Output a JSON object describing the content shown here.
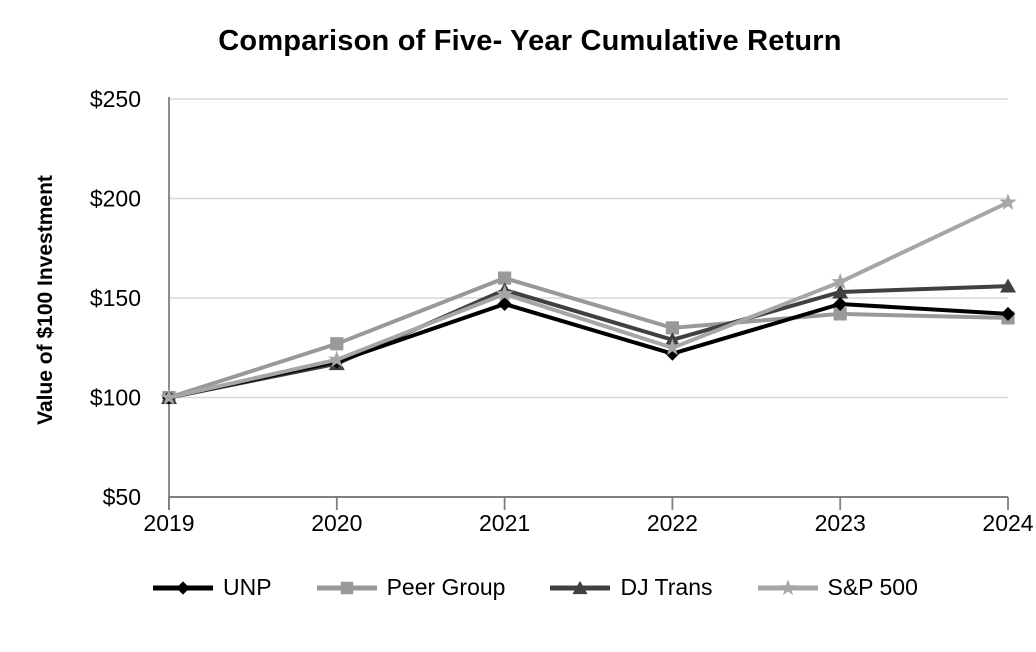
{
  "chart_data": {
    "type": "line",
    "title": "Comparison of Five- Year Cumulative Return",
    "xlabel": "",
    "ylabel": "Value of $100 Investment",
    "x": [
      "2019",
      "2020",
      "2021",
      "2022",
      "2023",
      "2024"
    ],
    "yticks": [
      50,
      100,
      150,
      200,
      250
    ],
    "ytick_labels": [
      "$50",
      "$100",
      "$150",
      "$200",
      "$250"
    ],
    "ylim": [
      50,
      250
    ],
    "grid": "horizontal",
    "legend_position": "bottom",
    "colors": {
      "gridline": "#d9d9d9",
      "axis": "#808080",
      "text": "#000000"
    },
    "series": [
      {
        "name": "UNP",
        "marker": "diamond",
        "color": "#000000",
        "values": [
          100,
          118,
          147,
          122,
          147,
          142
        ]
      },
      {
        "name": "Peer Group",
        "marker": "square",
        "color": "#999999",
        "values": [
          100,
          127,
          160,
          135,
          142,
          140
        ]
      },
      {
        "name": "DJ Trans",
        "marker": "triangle",
        "color": "#404040",
        "values": [
          100,
          117,
          154,
          129,
          153,
          156
        ]
      },
      {
        "name": "S&P 500",
        "marker": "star",
        "color": "#a6a6a6",
        "values": [
          100,
          119,
          152,
          125,
          158,
          198
        ]
      }
    ]
  }
}
